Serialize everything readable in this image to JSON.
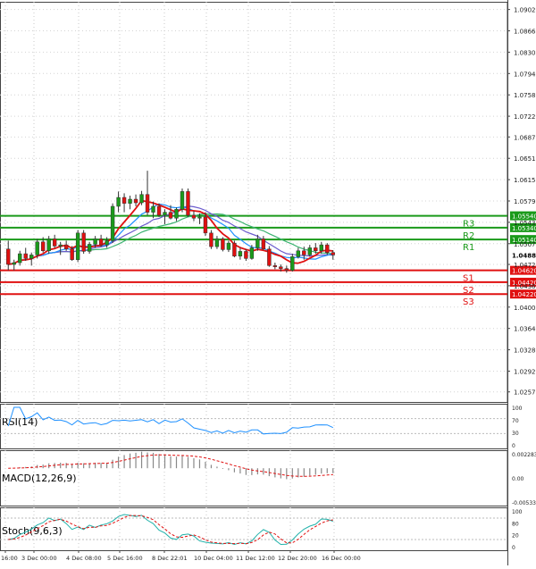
{
  "chart_data": {
    "type": "candlestick",
    "price_axis": {
      "ticks": [
        "1.09020",
        "1.08660",
        "1.08300",
        "1.07940",
        "1.07580",
        "1.07220",
        "1.06870",
        "1.06510",
        "1.06150",
        "1.05790",
        "1.05430",
        "1.05070",
        "1.04720",
        "1.04360",
        "1.04000",
        "1.03640",
        "1.03280",
        "1.02920",
        "1.02570"
      ],
      "range": [
        1.024,
        1.0915
      ],
      "current_price": "1.04881"
    },
    "levels": [
      {
        "name": "R3",
        "value": 1.0554,
        "label": "1.05540",
        "color": "#1a9a1a"
      },
      {
        "name": "R2",
        "value": 1.0534,
        "label": "1.05340",
        "color": "#1a9a1a"
      },
      {
        "name": "R1",
        "value": 1.0514,
        "label": "1.05140",
        "color": "#1a9a1a"
      },
      {
        "name": "S1",
        "value": 1.0462,
        "label": "1.04620",
        "color": "#e01010"
      },
      {
        "name": "S2",
        "value": 1.0442,
        "label": "1.04420",
        "color": "#e01010"
      },
      {
        "name": "S3",
        "value": 1.0422,
        "label": "1.04220",
        "color": "#e01010"
      }
    ],
    "x_labels": [
      "16:00",
      "3 Dec 00:00",
      "4 Dec 08:00",
      "5 Dec 16:00",
      "8 Dec 22:01",
      "10 Dec 04:00",
      "11 Dec 12:00",
      "12 Dec 20:00",
      "16 Dec 00:00"
    ],
    "candles": [
      [
        1.0498,
        1.0512,
        1.0462,
        1.0472
      ],
      [
        1.0472,
        1.048,
        1.0462,
        1.0475
      ],
      [
        1.0475,
        1.0495,
        1.047,
        1.049
      ],
      [
        1.049,
        1.05,
        1.0478,
        1.0482
      ],
      [
        1.0482,
        1.0492,
        1.047,
        1.0488
      ],
      [
        1.0488,
        1.0515,
        1.0482,
        1.051
      ],
      [
        1.051,
        1.0518,
        1.0492,
        1.0495
      ],
      [
        1.0495,
        1.052,
        1.049,
        1.0515
      ],
      [
        1.0515,
        1.0522,
        1.05,
        1.0503
      ],
      [
        1.0503,
        1.051,
        1.0488,
        1.0505
      ],
      [
        1.0505,
        1.0512,
        1.0495,
        1.0498
      ],
      [
        1.0498,
        1.0503,
        1.0478,
        1.048
      ],
      [
        1.048,
        1.053,
        1.0476,
        1.0525
      ],
      [
        1.0525,
        1.053,
        1.049,
        1.0494
      ],
      [
        1.0494,
        1.051,
        1.049,
        1.0506
      ],
      [
        1.0506,
        1.052,
        1.05,
        1.0515
      ],
      [
        1.0515,
        1.0522,
        1.0502,
        1.0505
      ],
      [
        1.0505,
        1.0518,
        1.05,
        1.0512
      ],
      [
        1.0512,
        1.0575,
        1.0508,
        1.057
      ],
      [
        1.057,
        1.0595,
        1.056,
        1.0585
      ],
      [
        1.0585,
        1.0592,
        1.056,
        1.0575
      ],
      [
        1.0575,
        1.0588,
        1.0565,
        1.0582
      ],
      [
        1.0582,
        1.059,
        1.057,
        1.0576
      ],
      [
        1.0576,
        1.0596,
        1.0572,
        1.059
      ],
      [
        1.059,
        1.063,
        1.0555,
        1.056
      ],
      [
        1.056,
        1.0578,
        1.055,
        1.057
      ],
      [
        1.057,
        1.0575,
        1.0552,
        1.0555
      ],
      [
        1.0555,
        1.0565,
        1.054,
        1.056
      ],
      [
        1.056,
        1.0572,
        1.0548,
        1.055
      ],
      [
        1.055,
        1.0568,
        1.0545,
        1.0565
      ],
      [
        1.0565,
        1.06,
        1.056,
        1.0595
      ],
      [
        1.0595,
        1.06,
        1.0552,
        1.0555
      ],
      [
        1.0555,
        1.0562,
        1.0545,
        1.055
      ],
      [
        1.055,
        1.0558,
        1.054,
        1.0552
      ],
      [
        1.0552,
        1.056,
        1.052,
        1.0525
      ],
      [
        1.0525,
        1.053,
        1.0498,
        1.0502
      ],
      [
        1.0502,
        1.052,
        1.0498,
        1.0515
      ],
      [
        1.0515,
        1.0518,
        1.0494,
        1.0497
      ],
      [
        1.0497,
        1.0512,
        1.0493,
        1.0508
      ],
      [
        1.0508,
        1.0512,
        1.0484,
        1.0486
      ],
      [
        1.0486,
        1.05,
        1.048,
        1.0494
      ],
      [
        1.0494,
        1.0498,
        1.0478,
        1.0482
      ],
      [
        1.0482,
        1.0505,
        1.048,
        1.05
      ],
      [
        1.05,
        1.0522,
        1.0495,
        1.0515
      ],
      [
        1.0515,
        1.052,
        1.0496,
        1.0498
      ],
      [
        1.0498,
        1.0503,
        1.0468,
        1.047
      ],
      [
        1.047,
        1.0475,
        1.0464,
        1.0468
      ],
      [
        1.0468,
        1.0472,
        1.046,
        1.0465
      ],
      [
        1.0465,
        1.047,
        1.0458,
        1.0462
      ],
      [
        1.0462,
        1.049,
        1.046,
        1.0485
      ],
      [
        1.0485,
        1.05,
        1.0482,
        1.0495
      ],
      [
        1.0495,
        1.0502,
        1.048,
        1.0488
      ],
      [
        1.0488,
        1.0505,
        1.0485,
        1.05
      ],
      [
        1.05,
        1.0508,
        1.049,
        1.0495
      ],
      [
        1.0495,
        1.051,
        1.049,
        1.0505
      ],
      [
        1.0505,
        1.0508,
        1.0488,
        1.0492
      ],
      [
        1.0492,
        1.0496,
        1.048,
        1.0488
      ]
    ],
    "indicators": [
      {
        "name": "RSI(14)",
        "axis_ticks": [
          "100",
          "70",
          "30",
          "0"
        ]
      },
      {
        "name": "MACD(12,26,9)",
        "axis_ticks": [
          "0.002283",
          "0.00",
          "-0.005335"
        ]
      },
      {
        "name": "Stoch(9,6,3)",
        "axis_ticks": [
          "100",
          "80",
          "20",
          "0"
        ]
      }
    ],
    "colors": {
      "bull": "#1a9a1a",
      "bear": "#e01010",
      "ma_fast": "#1e90ff",
      "ma_mid": "#6a5acd",
      "ma_slow": "#3cb371",
      "ma_red": "#e01010",
      "rsi": "#1e90ff",
      "macd_signal": "#e01010",
      "stoch_k": "#20b2aa",
      "stoch_d": "#e01010"
    }
  }
}
